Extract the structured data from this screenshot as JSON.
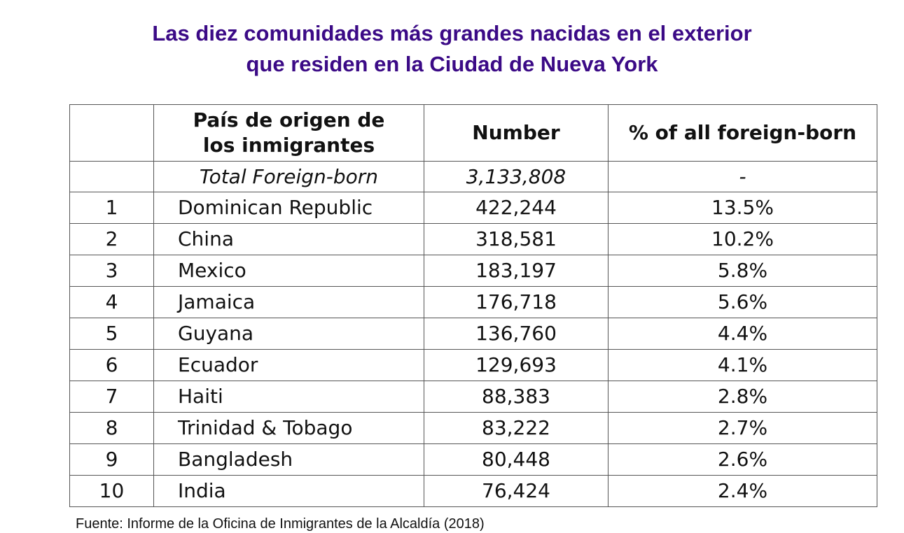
{
  "chart_data": {
    "type": "table",
    "title_lines": [
      "Las diez comunidades más grandes nacidas en el exterior",
      "que residen en la Ciudad de Nueva York"
    ],
    "columns": {
      "rank": "",
      "country_lines": [
        "País de origen de",
        "los inmigrantes"
      ],
      "number": "Number",
      "percent": "% of all foreign-born"
    },
    "total": {
      "label": "Total Foreign-born",
      "number": "3,133,808",
      "percent": "-"
    },
    "rows": [
      {
        "rank": "1",
        "country": "Dominican Republic",
        "number": "422,244",
        "percent": "13.5%"
      },
      {
        "rank": "2",
        "country": "China",
        "number": "318,581",
        "percent": "10.2%"
      },
      {
        "rank": "3",
        "country": "Mexico",
        "number": "183,197",
        "percent": "5.8%"
      },
      {
        "rank": "4",
        "country": "Jamaica",
        "number": "176,718",
        "percent": "5.6%"
      },
      {
        "rank": "5",
        "country": "Guyana",
        "number": "136,760",
        "percent": "4.4%"
      },
      {
        "rank": "6",
        "country": "Ecuador",
        "number": "129,693",
        "percent": "4.1%"
      },
      {
        "rank": "7",
        "country": "Haiti",
        "number": "88,383",
        "percent": "2.8%"
      },
      {
        "rank": "8",
        "country": "Trinidad & Tobago",
        "number": "83,222",
        "percent": "2.7%"
      },
      {
        "rank": "9",
        "country": "Bangladesh",
        "number": "80,448",
        "percent": "2.6%"
      },
      {
        "rank": "10",
        "country": "India",
        "number": "76,424",
        "percent": "2.4%"
      }
    ],
    "source": "Fuente: Informe de la Oficina de Inmigrantes de la Alcaldía (2018)",
    "title_color": "#3b0a86"
  }
}
